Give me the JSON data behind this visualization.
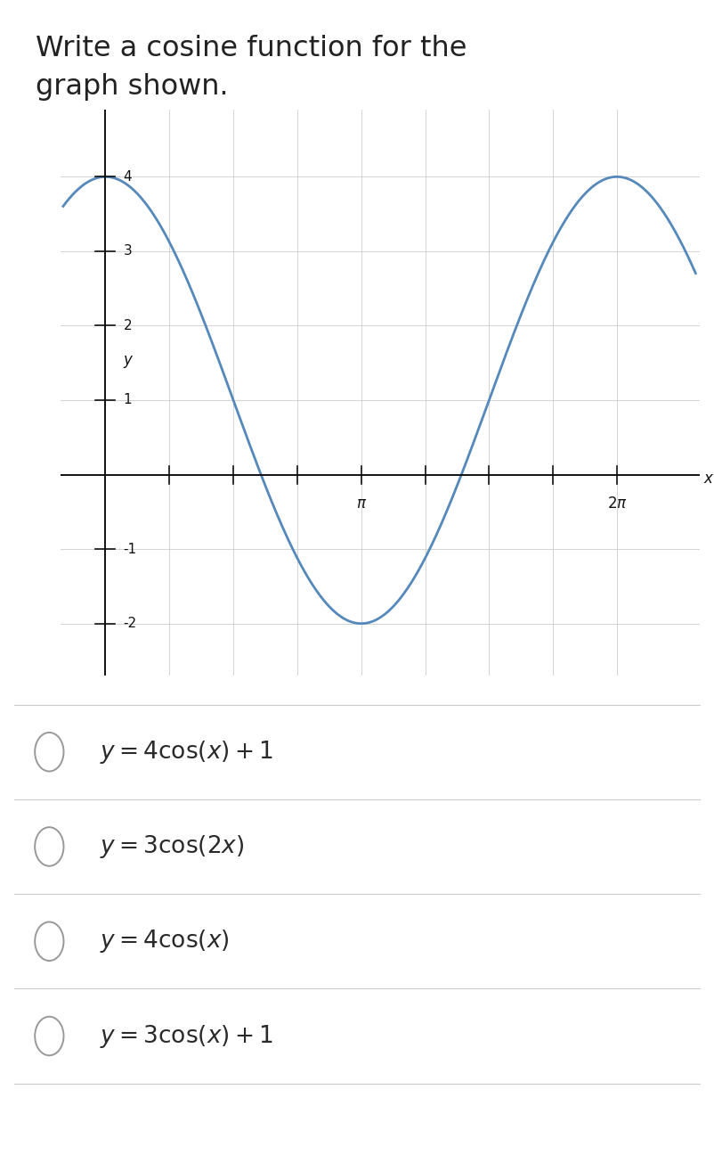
{
  "title_line1": "Write a cosine function for the",
  "title_line2": "graph shown.",
  "title_fontsize": 23,
  "title_color": "#222222",
  "curve_color": "#5588bb",
  "curve_linewidth": 2.0,
  "axis_color": "#111111",
  "grid_color": "#cccccc",
  "grid_linewidth": 0.6,
  "xlim": [
    -0.55,
    7.3
  ],
  "ylim": [
    -2.7,
    4.9
  ],
  "x_ticks": [
    0,
    3.14159265,
    6.2831853
  ],
  "y_ticks": [
    -2,
    -1,
    0,
    1,
    2,
    3,
    4
  ],
  "y_tick_labels": [
    "-2",
    "-1",
    "",
    "1",
    "2",
    "3",
    "4"
  ],
  "xlabel": "x",
  "ylabel": "y",
  "amplitude": 3,
  "vertical_shift": 1,
  "background_color": "#ffffff",
  "divider_color": "#cccccc",
  "choice_fontsize": 19,
  "circle_color": "#999999",
  "choices_latex": [
    "y = 4\\cos(x) + 1",
    "y = 3\\cos(2x)",
    "y = 4\\cos(x)",
    "y = 3\\cos(x) + 1"
  ]
}
